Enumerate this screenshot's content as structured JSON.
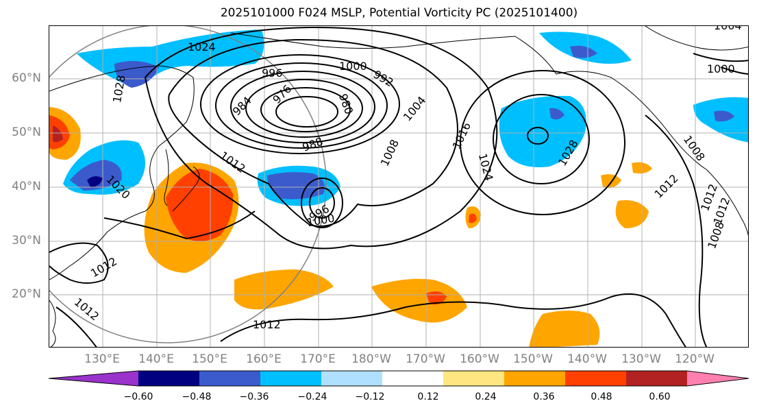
{
  "title": "2025101000 F024 MSLP, Potential Vorticity PC (2025101400)",
  "lat_labels": [
    "60°N",
    "50°N",
    "40°N",
    "30°N",
    "20°N"
  ],
  "lon_labels": [
    "130°E",
    "140°E",
    "150°E",
    "160°E",
    "170°E",
    "180°W",
    "170°W",
    "160°W",
    "150°W",
    "140°W",
    "130°W",
    "120°W"
  ],
  "contour_labels": [
    "1024",
    "1028",
    "996",
    "984",
    "976",
    "980",
    "1000",
    "992",
    "1004",
    "988",
    "1012",
    "1008",
    "1016",
    "1024",
    "1028",
    "1020",
    "1012",
    "1012",
    "1012",
    "996",
    "1000",
    "1012",
    "1012",
    "1008",
    "1004",
    "1000",
    "1012",
    "1008"
  ],
  "colorbar": {
    "ticks": [
      "−0.60",
      "−0.48",
      "−0.36",
      "−0.24",
      "−0.12",
      "0.12",
      "0.24",
      "0.36",
      "0.48",
      "0.60"
    ],
    "colors": [
      "#9933cc",
      "#000080",
      "#3b5bcc",
      "#00bfff",
      "#b0e0ff",
      "#ffffff",
      "#ffe680",
      "#ffa500",
      "#ff4000",
      "#b22222",
      "#ff80b0"
    ]
  }
}
